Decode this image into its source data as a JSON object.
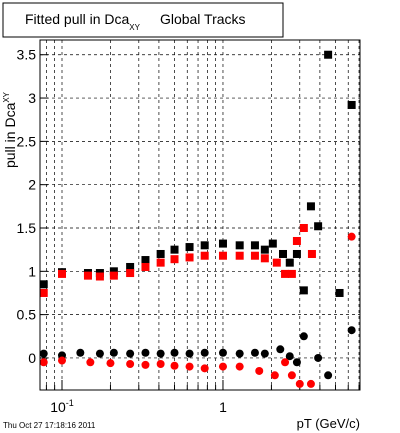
{
  "chart_data": {
    "type": "scatter",
    "title": "Fitted pull in Dca",
    "title_subscript": "XY",
    "title_suffix": "Global Tracks",
    "ylabel": "pull in Dca",
    "ylabel_subscript": "XY",
    "xlabel": "pT (GeV/c)",
    "footer": "Thu Oct 27 17:18:16 2011",
    "xlog": true,
    "grid": true,
    "xlim": [
      0.073,
      7.1
    ],
    "ylim": [
      -0.37,
      3.67
    ],
    "xticks": [
      {
        "value": 0.1,
        "label": "10",
        "exponent": "-1"
      },
      1
    ],
    "xminor_ticks": [
      0.08,
      0.09,
      0.2,
      0.3,
      0.4,
      0.5,
      0.6,
      0.7,
      0.8,
      0.9,
      2,
      3,
      4,
      5,
      6,
      7
    ],
    "yticks": [
      0,
      0.5,
      1,
      1.5,
      2,
      2.5,
      3,
      3.5
    ],
    "series": [
      {
        "color": "#000000",
        "marker": "square",
        "x": [
          0.077,
          0.1,
          0.145,
          0.172,
          0.21,
          0.265,
          0.33,
          0.41,
          0.5,
          0.62,
          0.77,
          1.0,
          1.27,
          1.58,
          1.82,
          2.04,
          2.36,
          2.6,
          2.88,
          3.18,
          3.52,
          3.9,
          4.5,
          5.3,
          6.3
        ],
        "values": [
          0.85,
          0.99,
          0.98,
          0.98,
          1.0,
          1.05,
          1.13,
          1.2,
          1.25,
          1.28,
          1.3,
          1.32,
          1.3,
          1.3,
          1.25,
          1.32,
          1.2,
          1.1,
          1.2,
          0.78,
          1.75,
          1.52,
          3.5,
          0.75,
          2.92
        ]
      },
      {
        "color": "#ff0000",
        "marker": "square",
        "x": [
          0.077,
          0.1,
          0.145,
          0.172,
          0.21,
          0.265,
          0.33,
          0.41,
          0.5,
          0.62,
          0.77,
          1.0,
          1.27,
          1.58,
          1.82,
          2.16,
          2.43,
          2.68,
          2.88,
          3.18,
          3.57
        ],
        "values": [
          0.75,
          0.97,
          0.95,
          0.94,
          0.95,
          0.98,
          1.05,
          1.1,
          1.14,
          1.16,
          1.18,
          1.18,
          1.18,
          1.18,
          1.15,
          1.1,
          0.97,
          0.97,
          1.35,
          1.5,
          1.2
        ]
      },
      {
        "color": "#000000",
        "marker": "circle",
        "x": [
          0.077,
          0.1,
          0.13,
          0.172,
          0.21,
          0.265,
          0.33,
          0.41,
          0.5,
          0.62,
          0.77,
          1.0,
          1.27,
          1.58,
          1.82,
          2.27,
          2.6,
          2.88,
          3.18,
          3.9,
          4.5,
          6.3
        ],
        "values": [
          0.05,
          0.03,
          0.06,
          0.05,
          0.06,
          0.05,
          0.06,
          0.05,
          0.06,
          0.05,
          0.06,
          0.06,
          0.05,
          0.06,
          0.05,
          0.1,
          0.02,
          -0.05,
          0.25,
          0.0,
          -0.2,
          0.32
        ]
      },
      {
        "color": "#ff0000",
        "marker": "circle",
        "x": [
          0.077,
          0.1,
          0.15,
          0.2,
          0.265,
          0.33,
          0.41,
          0.5,
          0.62,
          0.77,
          1.0,
          1.27,
          1.68,
          2.1,
          2.43,
          2.68,
          3.0,
          3.52,
          6.3
        ],
        "values": [
          -0.05,
          -0.03,
          -0.05,
          -0.06,
          -0.07,
          -0.08,
          -0.07,
          -0.09,
          -0.1,
          -0.12,
          -0.1,
          -0.1,
          -0.15,
          -0.2,
          -0.05,
          -0.2,
          -0.3,
          -0.3,
          1.4
        ]
      }
    ]
  }
}
